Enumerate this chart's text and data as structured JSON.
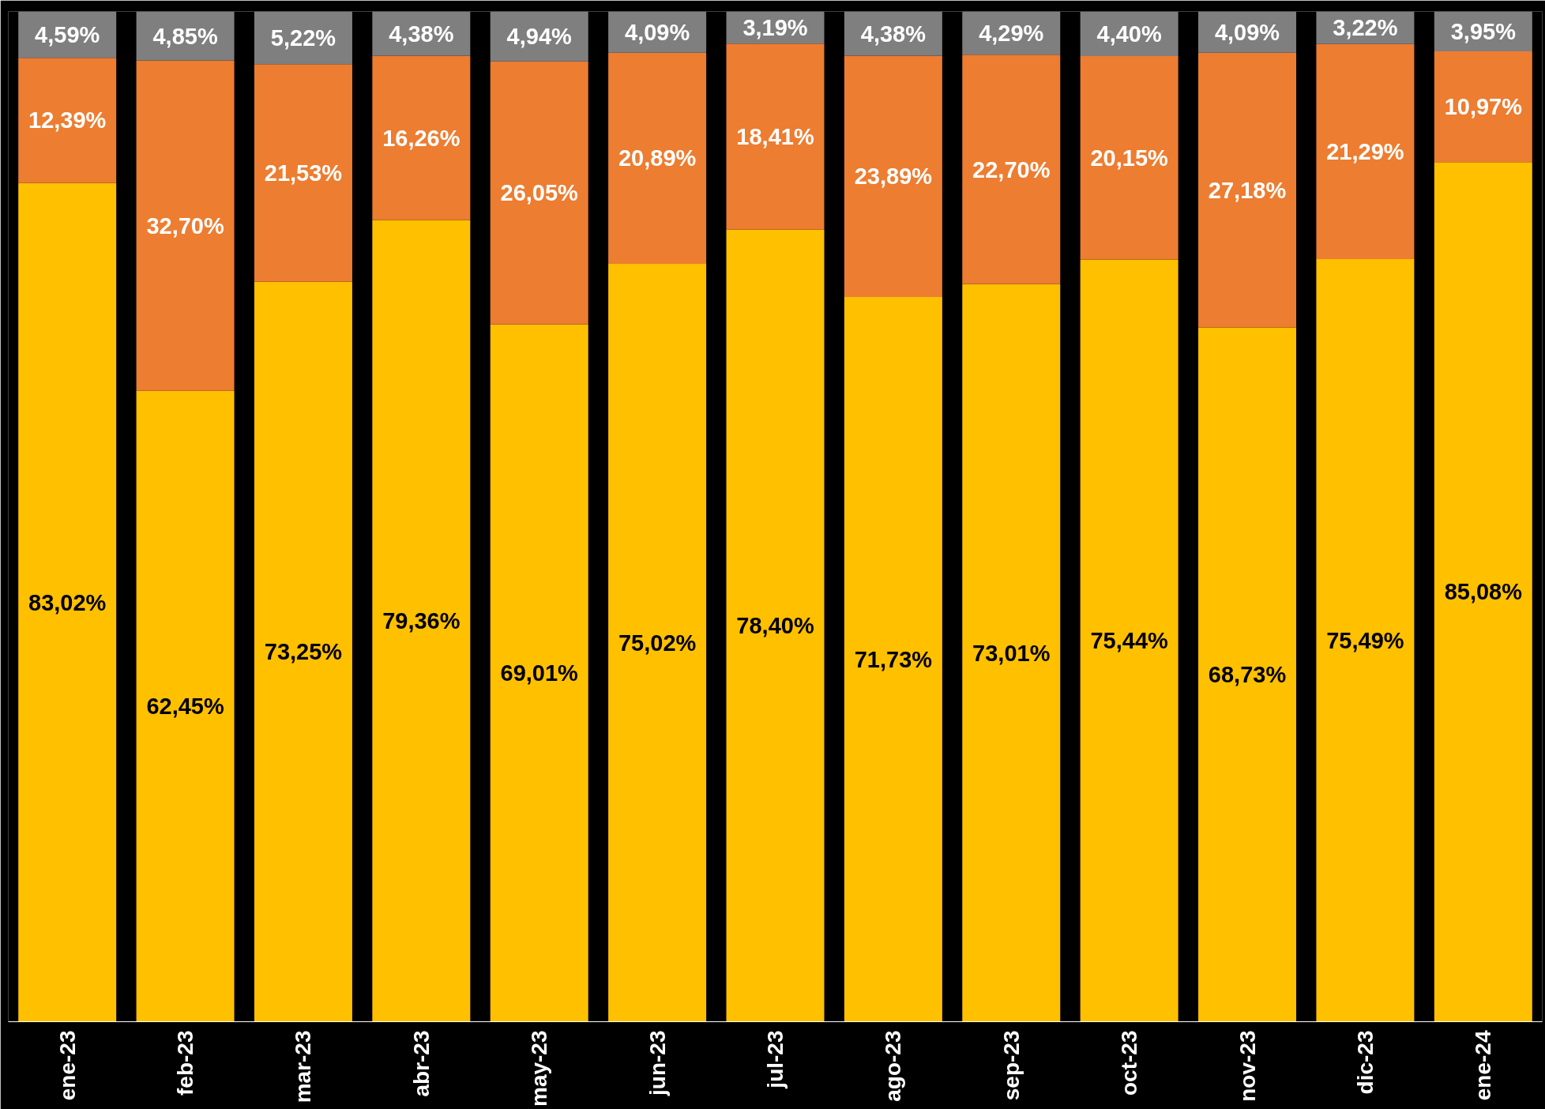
{
  "chart_data": {
    "type": "bar",
    "stacked": true,
    "grid": false,
    "categories": [
      "ene-23",
      "feb-23",
      "mar-23",
      "abr-23",
      "may-23",
      "jun-23",
      "jul-23",
      "ago-23",
      "sep-23",
      "oct-23",
      "nov-23",
      "dic-23",
      "ene-24"
    ],
    "series": [
      {
        "color": "#ffc000",
        "values": [
          83.02,
          62.45,
          73.25,
          79.36,
          69.01,
          75.02,
          78.4,
          71.73,
          73.01,
          75.44,
          68.73,
          75.49,
          85.08
        ],
        "value_labels": [
          "83,02%",
          "62,45%",
          "73,25%",
          "79,36%",
          "69,01%",
          "75,02%",
          "78,40%",
          "71,73%",
          "73,01%",
          "75,44%",
          "68,73%",
          "75,49%",
          "85,08%"
        ]
      },
      {
        "color": "#ed7d31",
        "values": [
          12.39,
          32.7,
          21.53,
          16.26,
          26.05,
          20.89,
          18.41,
          23.89,
          22.7,
          20.15,
          27.18,
          21.29,
          10.97
        ],
        "value_labels": [
          "12,39%",
          "32,70%",
          "21,53%",
          "16,26%",
          "26,05%",
          "20,89%",
          "18,41%",
          "23,89%",
          "22,70%",
          "20,15%",
          "27,18%",
          "21,29%",
          "10,97%"
        ]
      },
      {
        "color": "#7f7f7f",
        "values": [
          4.59,
          4.85,
          5.22,
          4.38,
          4.94,
          4.09,
          3.19,
          4.38,
          4.29,
          4.4,
          4.09,
          3.22,
          3.95
        ],
        "value_labels": [
          "4,59%",
          "4,85%",
          "5,22%",
          "4,38%",
          "4,94%",
          "4,09%",
          "3,19%",
          "4,38%",
          "4,29%",
          "4,40%",
          "4,09%",
          "3,22%",
          "3,95%"
        ]
      }
    ]
  }
}
